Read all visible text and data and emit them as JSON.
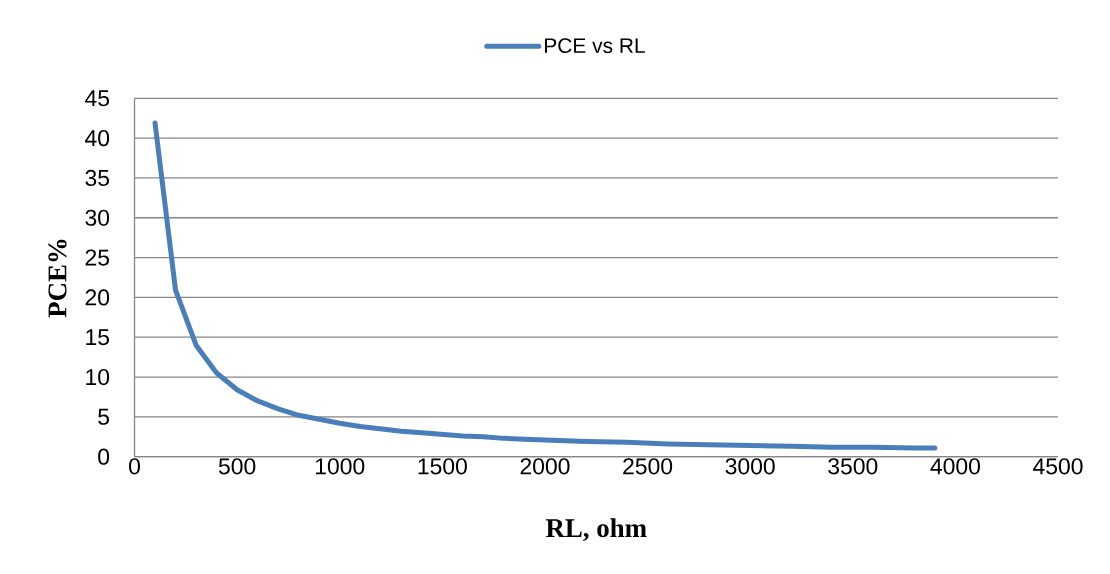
{
  "chart_data": {
    "type": "line",
    "xlabel": "RL, ohm",
    "ylabel": "PCE%",
    "x": [
      100,
      200,
      300,
      400,
      500,
      600,
      700,
      800,
      900,
      1000,
      1100,
      1200,
      1300,
      1400,
      1500,
      1600,
      1700,
      1800,
      1900,
      2000,
      2200,
      2400,
      2600,
      2800,
      3000,
      3200,
      3400,
      3600,
      3800,
      3900
    ],
    "series": [
      {
        "name": "PCE vs RL",
        "color": "#4a7ebb",
        "values": [
          41.9,
          20.9,
          14.0,
          10.5,
          8.4,
          7.0,
          6.0,
          5.2,
          4.7,
          4.2,
          3.8,
          3.5,
          3.2,
          3.0,
          2.8,
          2.6,
          2.5,
          2.3,
          2.2,
          2.1,
          1.9,
          1.8,
          1.6,
          1.5,
          1.4,
          1.3,
          1.2,
          1.2,
          1.1,
          1.1
        ]
      }
    ],
    "xlim": [
      0,
      4500
    ],
    "xticks": [
      0,
      500,
      1000,
      1500,
      2000,
      2500,
      3000,
      3500,
      4000,
      4500
    ],
    "ylim": [
      0,
      45
    ],
    "yticks": [
      0,
      5,
      10,
      15,
      20,
      25,
      30,
      35,
      40,
      45
    ],
    "grid": "y",
    "legend": "top",
    "marker": "none",
    "line_style": "solid"
  }
}
